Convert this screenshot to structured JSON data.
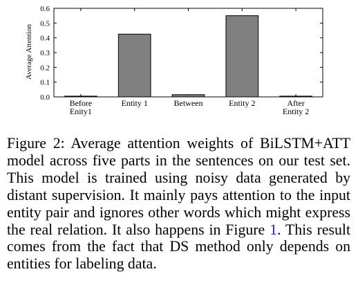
{
  "chart_data": {
    "type": "bar",
    "categories": [
      [
        "Before",
        "Enity1"
      ],
      [
        "Entity 1"
      ],
      [
        "Between"
      ],
      [
        "Entity 2"
      ],
      [
        "After",
        "Entity 2"
      ]
    ],
    "values": [
      0.005,
      0.425,
      0.015,
      0.55,
      0.005
    ],
    "ylabel": "Average Attention",
    "xlabel": "",
    "ylim": [
      0,
      0.6
    ],
    "yticks": [
      "0.0",
      "0.1",
      "0.2",
      "0.3",
      "0.4",
      "0.5",
      "0.6"
    ],
    "grid": false,
    "bar_color": "#808080"
  },
  "caption": {
    "prefix": "Figure 2:",
    "text_before_ref": "Average attention weights of BiLSTM+ATT model across five parts in the sentences on our test set. This model is trained using noisy data generated by distant supervision. It mainly pays attention to the input entity pair and ignores other words which might express the real relation. It also happens in Figure",
    "ref": "1",
    "text_after_ref": ". This result comes from the fact that DS method only depends on entities for labeling data."
  }
}
